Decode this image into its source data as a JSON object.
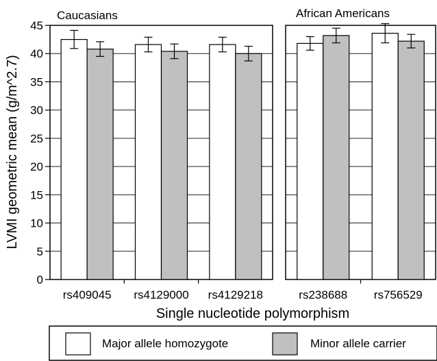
{
  "chart_data": {
    "type": "bar",
    "ylabel": "LVMI geometric mean (g/m^2.7)",
    "xlabel": "Single nucleotide polymorphism",
    "ylim": [
      0,
      45
    ],
    "yticks": [
      0,
      5,
      10,
      15,
      20,
      25,
      30,
      35,
      40,
      45
    ],
    "grid": "horizontal",
    "legend_position": "bottom",
    "series_names": [
      "Major allele homozygote",
      "Minor allele carrier"
    ],
    "colors": {
      "major": "#ffffff",
      "minor": "#c0c0c0"
    },
    "panels": [
      {
        "title": "Caucasians",
        "categories": [
          "rs409045",
          "rs4129000",
          "rs4129218"
        ],
        "major": {
          "values": [
            42.5,
            41.6,
            41.6
          ],
          "error": [
            1.6,
            1.3,
            1.3
          ]
        },
        "minor": {
          "values": [
            40.8,
            40.4,
            40.0
          ],
          "error": [
            1.3,
            1.3,
            1.3
          ]
        }
      },
      {
        "title": "African Americans",
        "categories": [
          "rs238688",
          "rs756529"
        ],
        "major": {
          "values": [
            41.8,
            43.6
          ],
          "error": [
            1.2,
            1.7
          ]
        },
        "minor": {
          "values": [
            43.2,
            42.2
          ],
          "error": [
            1.3,
            1.2
          ]
        }
      }
    ]
  }
}
